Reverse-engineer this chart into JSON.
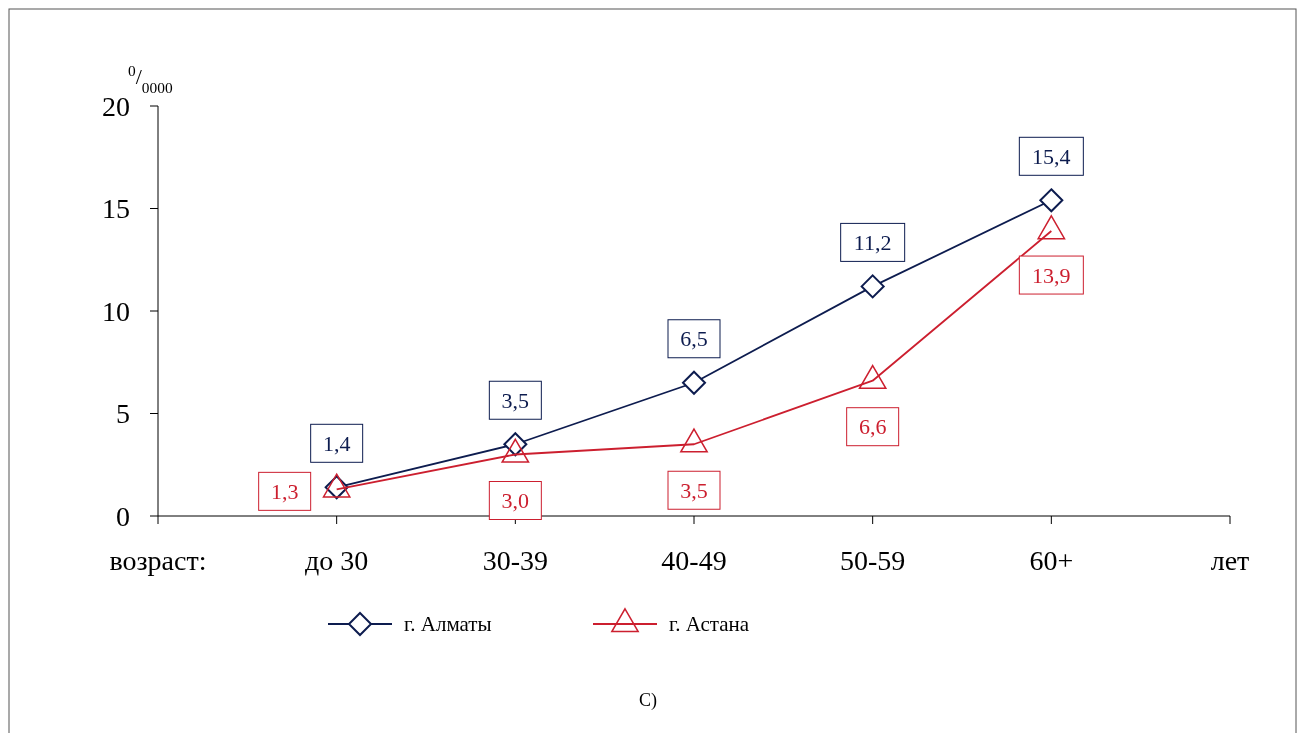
{
  "chart_data": {
    "type": "line",
    "ylabel": "$^{0}$/$_{0000}$",
    "xlabel": "возраст:",
    "categories": [
      "до 30",
      "30-39",
      "40-49",
      "50-59",
      "60+"
    ],
    "series": [
      {
        "name": "г. Алматы",
        "color": "#0d1c4f",
        "values": [
          1.4,
          3.5,
          6.5,
          11.2,
          15.4
        ],
        "marker": "diamond",
        "value_labels": [
          "1,4",
          "3,5",
          "6,5",
          "11,2",
          "15,4"
        ]
      },
      {
        "name": "г. Астана",
        "color": "#cc1f2f",
        "values": [
          1.3,
          3.0,
          3.5,
          6.6,
          13.9
        ],
        "marker": "triangle",
        "value_labels": [
          "1,3",
          "3,0",
          "3,5",
          "6,6",
          "13,9"
        ]
      }
    ],
    "ylim": [
      0,
      20
    ],
    "yticks": [
      0,
      5,
      10,
      15,
      20
    ],
    "legend": "bottom",
    "line_style": "solid",
    "annotations": [
      "лет",
      "С)"
    ]
  }
}
